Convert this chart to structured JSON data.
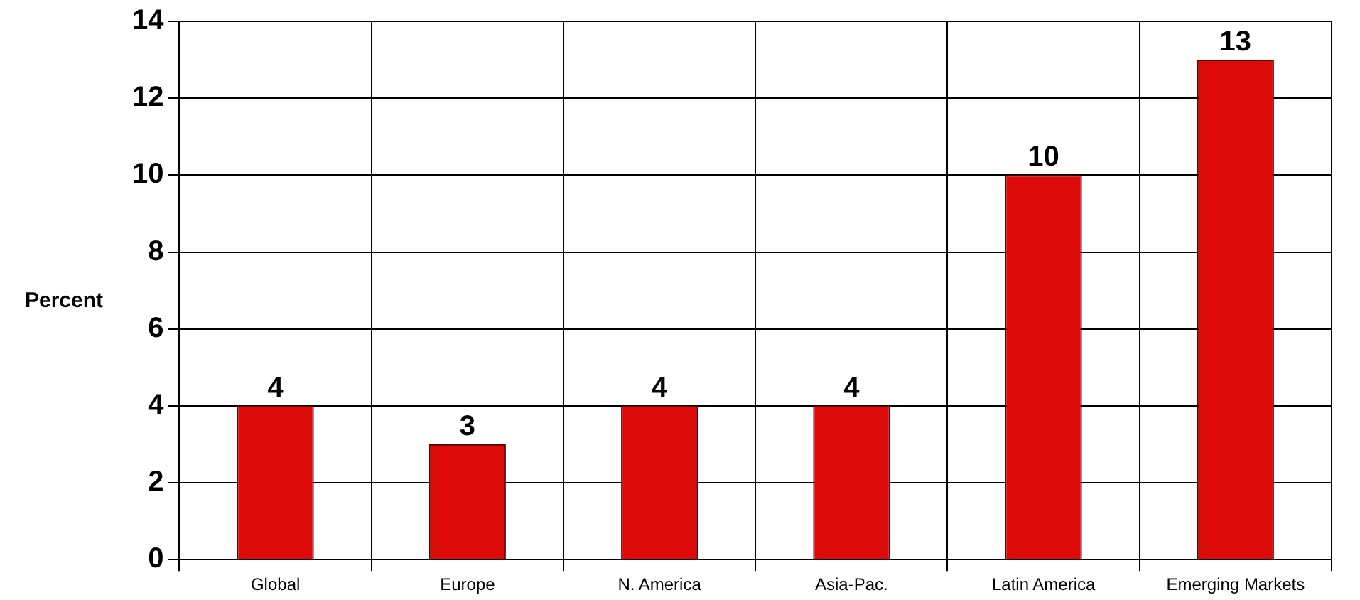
{
  "chart_data": {
    "type": "bar",
    "ylabel": "Percent",
    "categories": [
      "Global",
      "Europe",
      "N. America",
      "Asia-Pac.",
      "Latin America",
      "Emerging Markets"
    ],
    "values": [
      4,
      3,
      4,
      4,
      10,
      13
    ],
    "color": "#dd0a0a",
    "ylim": [
      0,
      14
    ],
    "yticks": [
      0,
      2,
      4,
      6,
      8,
      10,
      12,
      14
    ],
    "grid": true,
    "data_labels": true
  }
}
